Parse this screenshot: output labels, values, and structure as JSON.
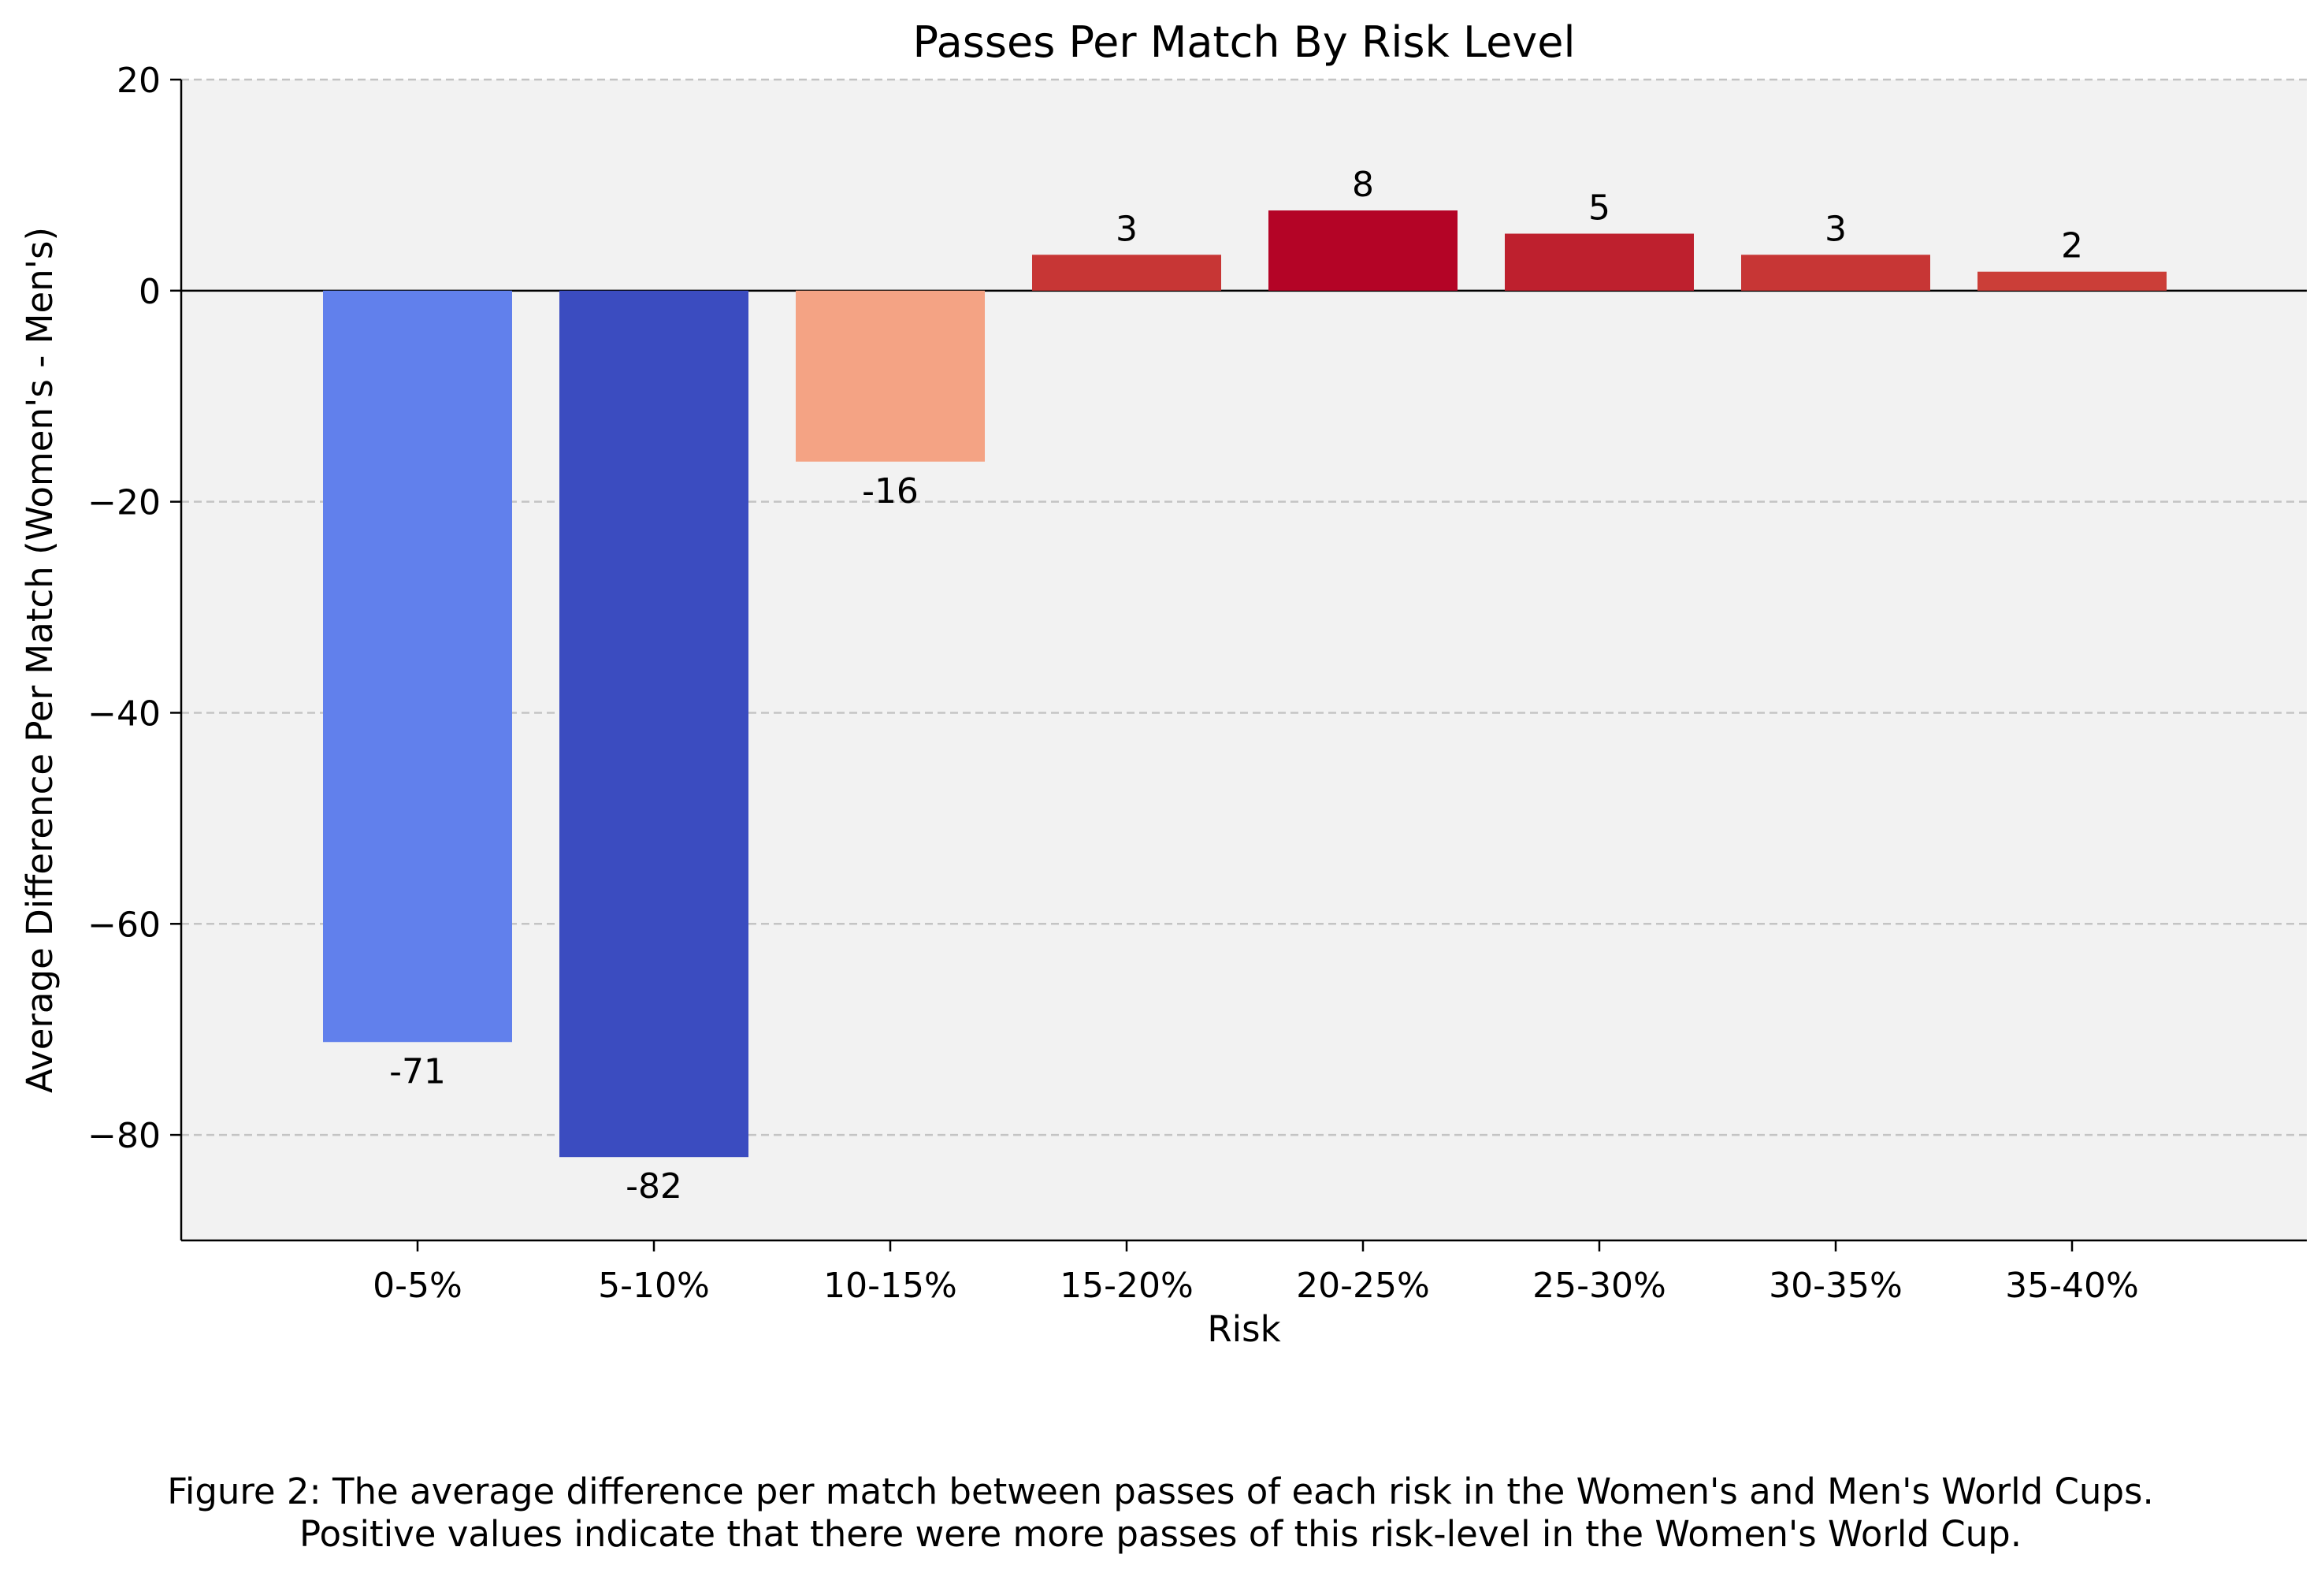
{
  "chart_data": {
    "type": "bar",
    "title": "Passes Per Match By Risk Level",
    "xlabel": "Risk",
    "ylabel": "Average Difference Per Match (Women's - Men's)",
    "categories": [
      "0-5%",
      "5-10%",
      "10-15%",
      "15-20%",
      "20-25%",
      "25-30%",
      "30-35%",
      "35-40%"
    ],
    "values": [
      -71.2,
      -82.1,
      -16.2,
      3.4,
      7.6,
      5.4,
      3.4,
      1.8
    ],
    "value_labels": [
      "-71",
      "-82",
      "-16",
      "3",
      "8",
      "5",
      "3",
      "2"
    ],
    "bar_colors": [
      "#6180ec",
      "#3b4cc0",
      "#f4a384",
      "#c73635",
      "#b40426",
      "#be202e",
      "#c73635",
      "#cb3e38"
    ],
    "ylim": [
      -90,
      20
    ],
    "yticks": [
      20,
      0,
      -20,
      -40,
      -60,
      -80
    ],
    "ytick_labels": [
      "20",
      "0",
      "−20",
      "−40",
      "−60",
      "−80"
    ],
    "grid": "y-dashed",
    "plot_background": "#f2f2f2",
    "legend": "none"
  },
  "caption": {
    "line1": "Figure 2: The average difference per match between passes of each risk in the Women's and Men's World Cups.",
    "line2": "Positive values indicate that there were more passes of this risk-level in the Women's World Cup."
  }
}
